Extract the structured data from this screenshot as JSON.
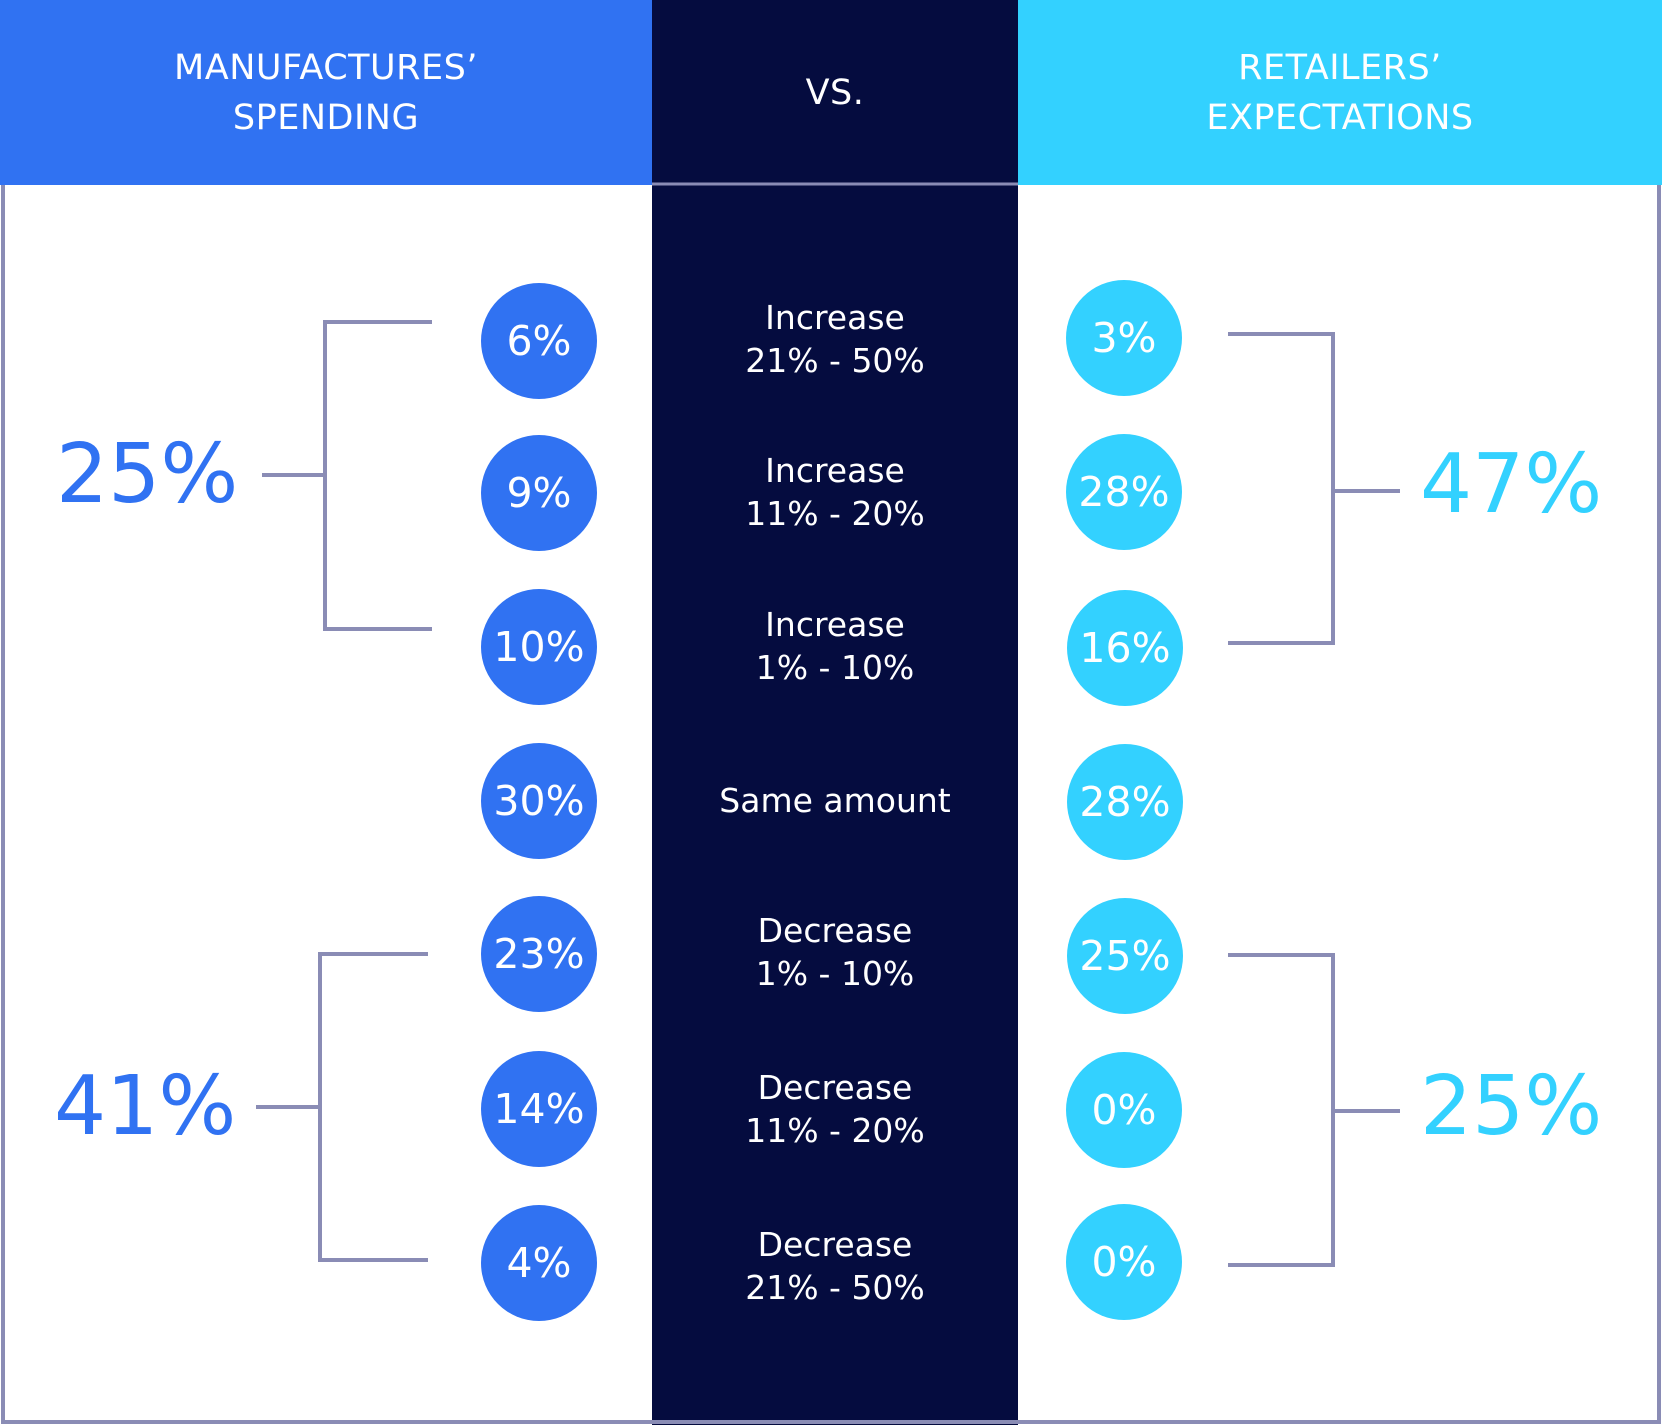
{
  "header": {
    "left_line1": "MANUFACTURES’",
    "left_line2": "SPENDING",
    "middle": "VS.",
    "right_line1": "RETAILERS’",
    "right_line2": "EXPECTATIONS"
  },
  "colors": {
    "manufacturers": "#3072F2",
    "retailers": "#33D1FF",
    "center": "#050C3F",
    "bracket": "#8A8CB5",
    "text_on_dark": "#FFFFFF"
  },
  "rows": [
    {
      "label_line1": "Increase",
      "label_line2": "21% - 50%",
      "manufacturers": "6%",
      "retailers": "3%"
    },
    {
      "label_line1": "Increase",
      "label_line2": "11% - 20%",
      "manufacturers": "9%",
      "retailers": "28%"
    },
    {
      "label_line1": "Increase",
      "label_line2": "1% - 10%",
      "manufacturers": "10%",
      "retailers": "16%"
    },
    {
      "label_line1": "Same amount",
      "label_line2": "",
      "manufacturers": "30%",
      "retailers": "28%"
    },
    {
      "label_line1": "Decrease",
      "label_line2": "1% - 10%",
      "manufacturers": "23%",
      "retailers": "25%"
    },
    {
      "label_line1": "Decrease",
      "label_line2": "11% - 20%",
      "manufacturers": "14%",
      "retailers": "0%"
    },
    {
      "label_line1": "Decrease",
      "label_line2": "21% - 50%",
      "manufacturers": "4%",
      "retailers": "0%"
    }
  ],
  "totals": {
    "manufacturers_increase": "25%",
    "manufacturers_decrease": "41%",
    "retailers_increase": "47%",
    "retailers_decrease": "25%"
  },
  "chart_data": {
    "type": "table",
    "title": "",
    "columns": [
      "MANUFACTURES’ SPENDING",
      "VS.",
      "RETAILERS’ EXPECTATIONS"
    ],
    "categories": [
      "Increase 21% - 50%",
      "Increase 11% - 20%",
      "Increase 1% - 10%",
      "Same amount",
      "Decrease 1% - 10%",
      "Decrease 11% - 20%",
      "Decrease 21% - 50%"
    ],
    "series": [
      {
        "name": "MANUFACTURES’ SPENDING",
        "values": [
          6,
          9,
          10,
          30,
          23,
          14,
          4
        ]
      },
      {
        "name": "RETAILERS’ EXPECTATIONS",
        "values": [
          3,
          28,
          16,
          28,
          25,
          0,
          0
        ]
      }
    ],
    "groups": [
      {
        "series": "MANUFACTURES’ SPENDING",
        "group": "Increase",
        "total": 25
      },
      {
        "series": "MANUFACTURES’ SPENDING",
        "group": "Decrease",
        "total": 41
      },
      {
        "series": "RETAILERS’ EXPECTATIONS",
        "group": "Increase",
        "total": 47
      },
      {
        "series": "RETAILERS’ EXPECTATIONS",
        "group": "Decrease",
        "total": 25
      }
    ]
  }
}
